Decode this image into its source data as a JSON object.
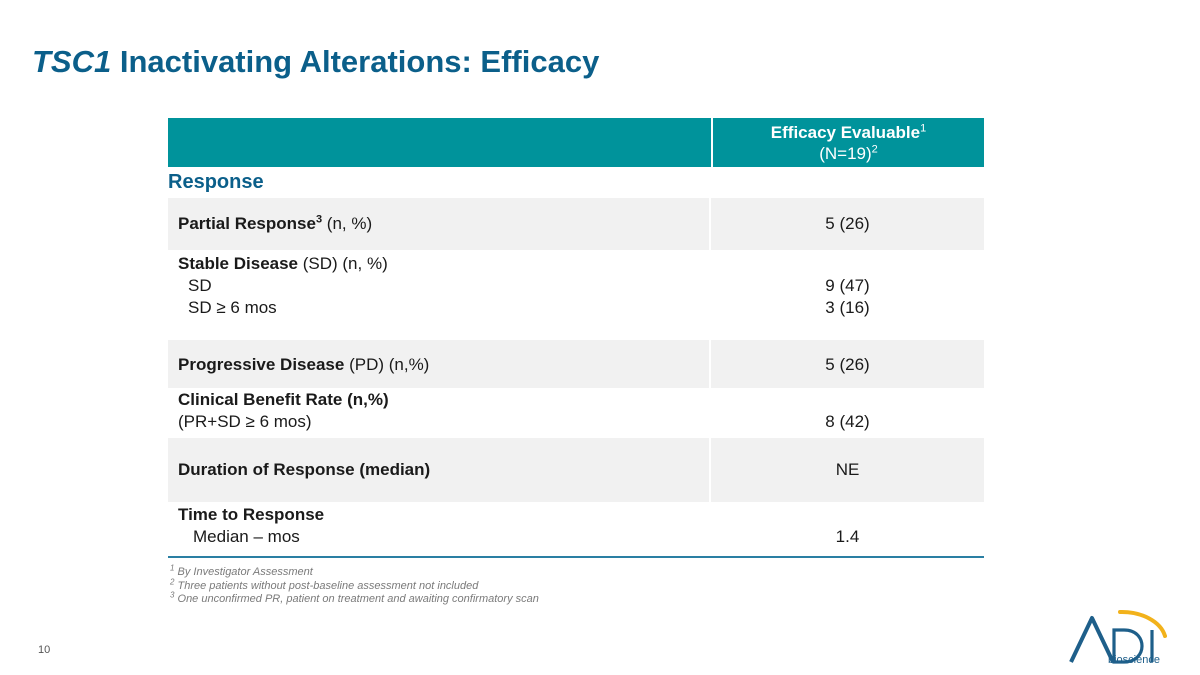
{
  "title": {
    "italic_part": "TSC1",
    "rest": " Inactivating Alterations: Efficacy"
  },
  "table": {
    "header": {
      "col2_line1": "Efficacy Evaluable",
      "col2_line1_sup": "1",
      "col2_line2": "(N=19)",
      "col2_line2_sup": "2"
    },
    "section_label": "Response",
    "partial_response": {
      "label_bold": "Partial Response",
      "sup": "3",
      "label_rest": " (n, %)",
      "value": "5 (26)"
    },
    "stable_disease": {
      "label_bold": "Stable Disease",
      "label_rest": " (SD) (n, %)",
      "sub1_label": "SD",
      "sub1_value": "9 (47)",
      "sub2_label": "SD ≥ 6 mos",
      "sub2_value": "3 (16)"
    },
    "progressive_disease": {
      "label_bold": "Progressive Disease",
      "label_rest": " (PD) (n,%)",
      "value": "5 (26)"
    },
    "clinical_benefit": {
      "label_bold": "Clinical Benefit Rate (n,%)",
      "sub_label": "(PR+SD ≥ 6 mos)",
      "value": "8 (42)"
    },
    "duration_of_response": {
      "label_bold": "Duration of Response (median)",
      "value": "NE"
    },
    "time_to_response": {
      "label_bold": "Time to Response",
      "sub_label": "Median – mos",
      "value": "1.4"
    }
  },
  "footnotes": [
    {
      "num": "1",
      "text": " By Investigator Assessment"
    },
    {
      "num": "2",
      "text": " Three patients without post-baseline assessment not included"
    },
    {
      "num": "3",
      "text": " One unconfirmed PR, patient on treatment and awaiting confirmatory scan"
    }
  ],
  "page_number": "10",
  "logo": {
    "wordmark": "ADI",
    "subtext": "bioscience"
  },
  "colors": {
    "title": "#0b5f8a",
    "header_bg": "#00939b",
    "row_shade": "#f1f1f1",
    "logo_arc": "#f2b21b"
  }
}
